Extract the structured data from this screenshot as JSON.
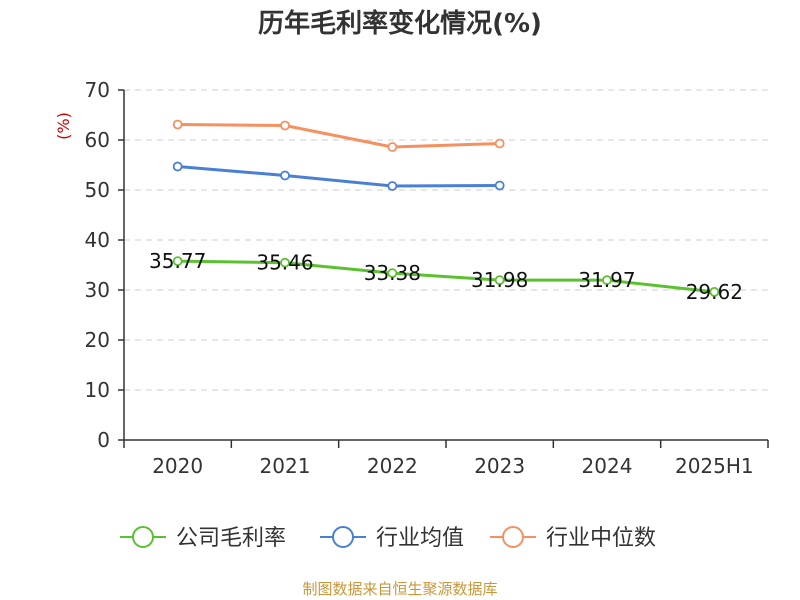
{
  "chart_data": {
    "type": "line",
    "title": "历年毛利率变化情况(%)",
    "ylabel": "(%)",
    "xlabel": "",
    "categories": [
      "2020",
      "2021",
      "2022",
      "2023",
      "2024",
      "2025H1"
    ],
    "ylim": [
      0,
      70
    ],
    "yticks": [
      0,
      10,
      20,
      30,
      40,
      50,
      60,
      70
    ],
    "grid": true,
    "legend_position": "bottom",
    "series": [
      {
        "name": "公司毛利率",
        "color": "#5cc130",
        "values": [
          35.77,
          35.46,
          33.38,
          31.98,
          31.97,
          29.62
        ],
        "labels": [
          "35.77",
          "35.46",
          "33.38",
          "31.98",
          "31.97",
          "29.62"
        ]
      },
      {
        "name": "行业均值",
        "color": "#4a7fd6",
        "values": [
          54.7,
          52.9,
          50.8,
          50.9,
          null,
          null
        ]
      },
      {
        "name": "行业中位数",
        "color": "#f59160",
        "values": [
          63.1,
          62.9,
          58.6,
          59.3,
          null,
          null
        ]
      }
    ]
  },
  "source": "制图数据来自恒生聚源数据库"
}
